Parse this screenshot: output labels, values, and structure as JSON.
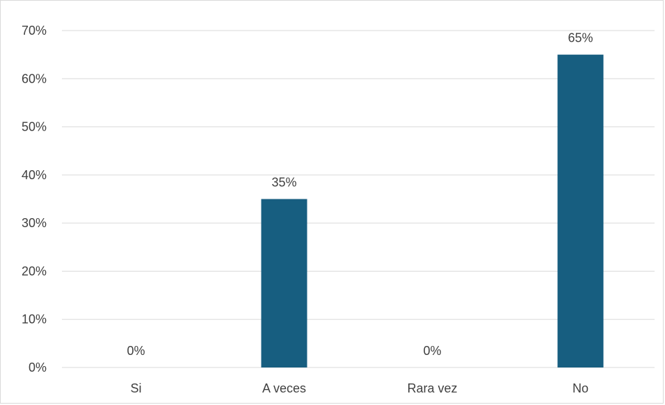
{
  "chart_data": {
    "type": "bar",
    "categories": [
      "Si",
      "A veces",
      "Rara vez",
      "No"
    ],
    "values": [
      0,
      35,
      0,
      65
    ],
    "data_labels": [
      "0%",
      "35%",
      "0%",
      "65%"
    ],
    "y_ticks": [
      "0%",
      "10%",
      "20%",
      "30%",
      "40%",
      "50%",
      "60%",
      "70%"
    ],
    "ylim": [
      0,
      70
    ],
    "grid": true,
    "legend": "none",
    "title": "",
    "xlabel": "",
    "ylabel": "",
    "colors": {
      "bar": "#175E80",
      "grid": "#d9d9d9",
      "text": "#404040",
      "frame": "#d9d9d9"
    }
  }
}
